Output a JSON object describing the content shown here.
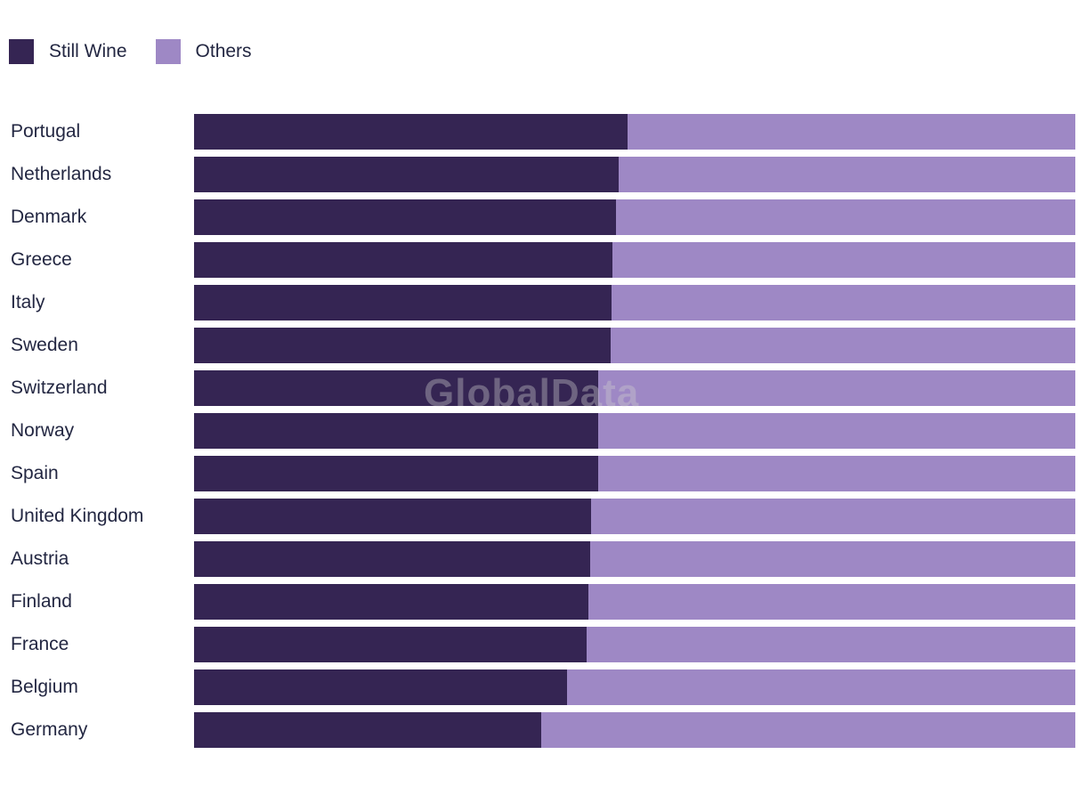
{
  "page": {
    "background": "#ffffff"
  },
  "legend": {
    "items": [
      {
        "label": "Still Wine",
        "color": "#352553"
      },
      {
        "label": "Others",
        "color": "#9E88C5"
      }
    ]
  },
  "watermark": {
    "text": "GlobalData"
  },
  "chart_data": {
    "type": "bar",
    "subtype": "horizontal-stacked",
    "title": "",
    "xlabel": "",
    "ylabel": "",
    "xlim": [
      0,
      100
    ],
    "unit": "% share (estimated from bar lengths; no axis labels shown)",
    "grid": false,
    "legend_position": "top-left",
    "categories": [
      "Portugal",
      "Netherlands",
      "Denmark",
      "Greece",
      "Italy",
      "Sweden",
      "Switzerland",
      "Norway",
      "Spain",
      "United Kingdom",
      "Austria",
      "Finland",
      "France",
      "Belgium",
      "Germany"
    ],
    "series": [
      {
        "name": "Still Wine",
        "color": "#352553",
        "values": [
          49.2,
          48.2,
          47.9,
          47.5,
          47.4,
          47.3,
          45.9,
          45.9,
          45.9,
          45.1,
          44.9,
          44.7,
          44.5,
          42.3,
          39.4
        ]
      },
      {
        "name": "Others",
        "color": "#9E88C5",
        "values": [
          50.8,
          51.8,
          52.1,
          52.5,
          52.6,
          52.7,
          54.1,
          54.1,
          54.1,
          54.9,
          55.1,
          55.3,
          55.5,
          57.7,
          60.6
        ]
      }
    ]
  }
}
